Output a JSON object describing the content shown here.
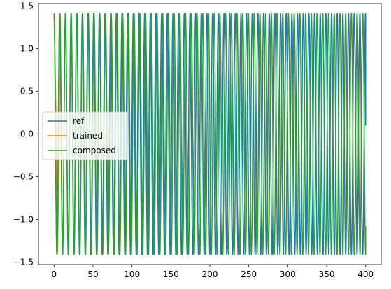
{
  "chart_data": {
    "type": "line",
    "title": "",
    "xlabel": "",
    "ylabel": "",
    "xlim": [
      -20,
      420
    ],
    "ylim": [
      -1.53,
      1.53
    ],
    "xticks": [
      0,
      50,
      100,
      150,
      200,
      250,
      300,
      350,
      400
    ],
    "yticks": [
      -1.5,
      -1.0,
      -0.5,
      0.0,
      0.5,
      1.0,
      1.5
    ],
    "xtick_labels": [
      "0",
      "50",
      "100",
      "150",
      "200",
      "250",
      "300",
      "350",
      "400"
    ],
    "ytick_labels": [
      "−1.5",
      "−1.0",
      "−0.5",
      "0.0",
      "0.5",
      "1.0",
      "1.5"
    ],
    "grid": false,
    "legend_position": "center-left",
    "series": [
      {
        "name": "ref",
        "color": "#1f77b4",
        "kind": "sinusoid",
        "amplitude": 1.4142,
        "period": 7.27,
        "phase_offset": 0,
        "x_start": 0,
        "x_end": 400,
        "start_value": 1.4142,
        "end_value": 0.1
      },
      {
        "name": "trained",
        "color": "#ff7f0e",
        "kind": "points",
        "x": [
          0,
          2,
          4.5,
          6,
          8,
          10
        ],
        "y": [
          1.4142,
          0.5,
          -1.4,
          -0.5,
          1.4,
          -0.6
        ]
      },
      {
        "name": "composed",
        "color": "#2ca02c",
        "kind": "sinusoid",
        "amplitude": 1.4142,
        "period": 7.34,
        "phase_offset": 0,
        "x_start": 0,
        "x_end": 400,
        "start_value": 1.4142,
        "end_value": -1.08
      }
    ]
  }
}
